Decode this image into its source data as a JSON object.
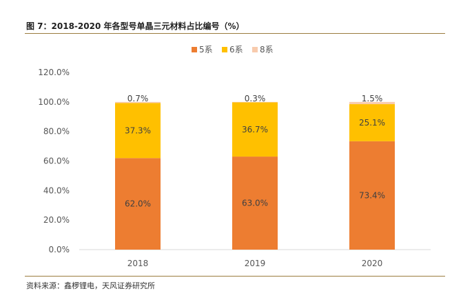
{
  "figure": {
    "title": "图 7：2018-2020 年各型号单晶三元材料占比编号（%）",
    "source": "资料来源：鑫椤锂电，天风证券研究所"
  },
  "chart_data": {
    "type": "bar",
    "stacked": true,
    "categories": [
      "2018",
      "2019",
      "2020"
    ],
    "series": [
      {
        "name": "5系",
        "color": "#ED7D31",
        "values": [
          62.0,
          63.0,
          73.4
        ],
        "labels": [
          "62.0%",
          "63.0%",
          "73.4%"
        ]
      },
      {
        "name": "6系",
        "color": "#FFC000",
        "values": [
          37.3,
          36.7,
          25.1
        ],
        "labels": [
          "37.3%",
          "36.7%",
          "25.1%"
        ]
      },
      {
        "name": "8系",
        "color": "#F8CBAD",
        "values": [
          0.7,
          0.3,
          1.5
        ],
        "labels": [
          "0.7%",
          "0.3%",
          "1.5%"
        ]
      }
    ],
    "ylim": [
      0,
      120
    ],
    "yticks": [
      "0.0%",
      "20.0%",
      "40.0%",
      "60.0%",
      "80.0%",
      "100.0%",
      "120.0%"
    ],
    "grid": false,
    "legend_position": "top"
  }
}
